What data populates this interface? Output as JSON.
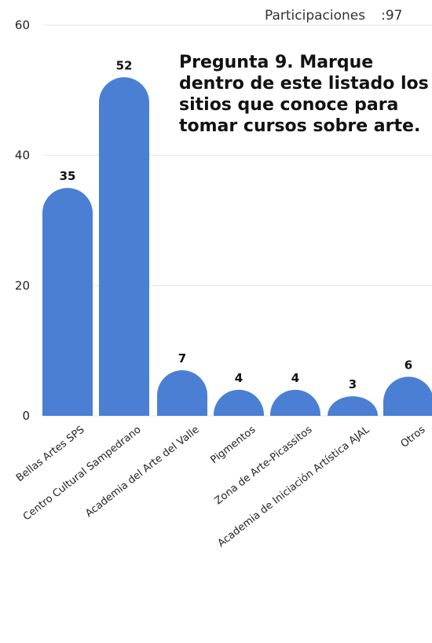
{
  "participation": {
    "label": "Participaciones",
    "separator": ":",
    "value": "97"
  },
  "question_text": "Pregunta 9. Marque dentro de este listado los sitios que conoce para tomar cursos sobre arte.",
  "colors": {
    "bar": "#4a7fd4",
    "grid": "#e6e6e6"
  },
  "chart_data": {
    "type": "bar",
    "title": "",
    "xlabel": "",
    "ylabel": "",
    "ylim": [
      0,
      60
    ],
    "yticks": [
      0,
      20,
      40,
      60
    ],
    "grid": true,
    "categories": [
      "Bellas Artes SPS",
      "Centro Cultural Sampedrano",
      "Academia del Arte del Valle",
      "Pigmentos",
      "Zona de Arte-Picassitos",
      "Academia de Iniciación Artística AJAL",
      "Otros"
    ],
    "values": [
      35,
      52,
      7,
      4,
      4,
      3,
      6
    ]
  }
}
